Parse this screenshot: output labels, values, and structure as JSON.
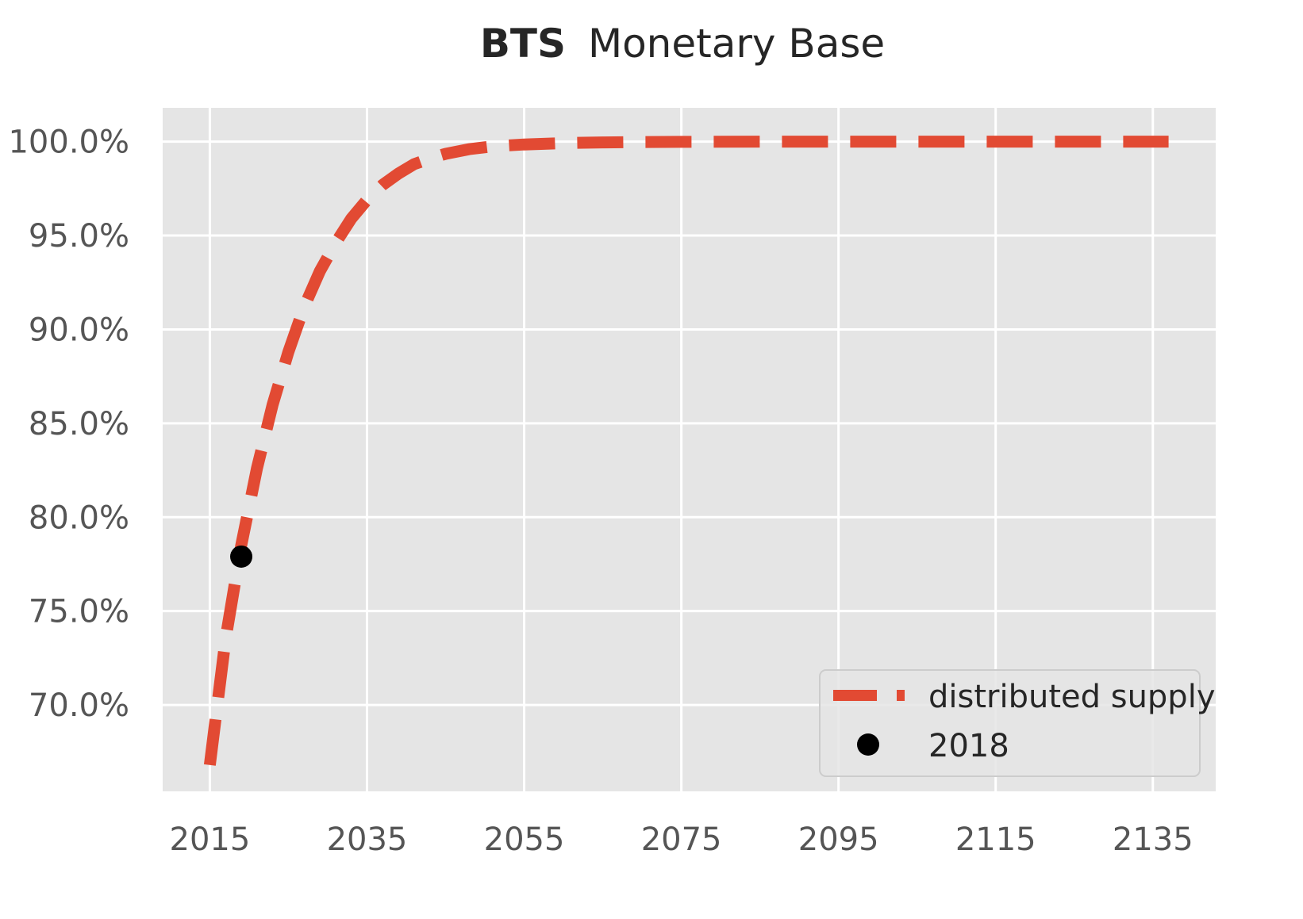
{
  "chart_data": {
    "type": "line",
    "title_bold": "BTS",
    "title_rest": "Monetary Base",
    "xlabel": "",
    "ylabel": "",
    "xlim": [
      2009,
      2143
    ],
    "ylim": [
      65.4,
      101.8
    ],
    "x_ticks": [
      2015,
      2035,
      2055,
      2075,
      2095,
      2115,
      2135
    ],
    "x_tick_labels": [
      "2015",
      "2035",
      "2055",
      "2075",
      "2095",
      "2115",
      "2135"
    ],
    "y_ticks": [
      70,
      75,
      80,
      85,
      90,
      95,
      100
    ],
    "y_tick_labels": [
      "70.0%",
      "75.0%",
      "80.0%",
      "85.0%",
      "90.0%",
      "95.0%",
      "100.0%"
    ],
    "grid": true,
    "legend_position": "bottom-right",
    "series": [
      {
        "name": "distributed supply",
        "style": "dashed",
        "color": "#E24A33",
        "x": [
          2015,
          2017,
          2019,
          2021,
          2023,
          2025,
          2027,
          2029,
          2031,
          2033,
          2035,
          2037,
          2039,
          2041,
          2043,
          2045,
          2048,
          2051,
          2055,
          2060,
          2065,
          2070,
          2075,
          2085,
          2095,
          2105,
          2115,
          2125,
          2137
        ],
        "y": [
          66.8,
          73.5,
          78.5,
          82.6,
          86.0,
          88.8,
          91.2,
          93.1,
          94.6,
          95.9,
          96.9,
          97.7,
          98.3,
          98.8,
          99.1,
          99.35,
          99.6,
          99.75,
          99.85,
          99.92,
          99.96,
          99.98,
          99.99,
          100.0,
          100.0,
          100.0,
          100.0,
          100.0,
          100.0
        ]
      },
      {
        "name": "2018",
        "style": "marker",
        "color": "#000000",
        "x": [
          2019
        ],
        "y": [
          77.9
        ]
      }
    ]
  },
  "colors": {
    "plot_background": "#E5E5E5",
    "grid": "#FFFFFF",
    "legend_background": "#E5E5E5",
    "legend_border": "#CCCCCC"
  }
}
